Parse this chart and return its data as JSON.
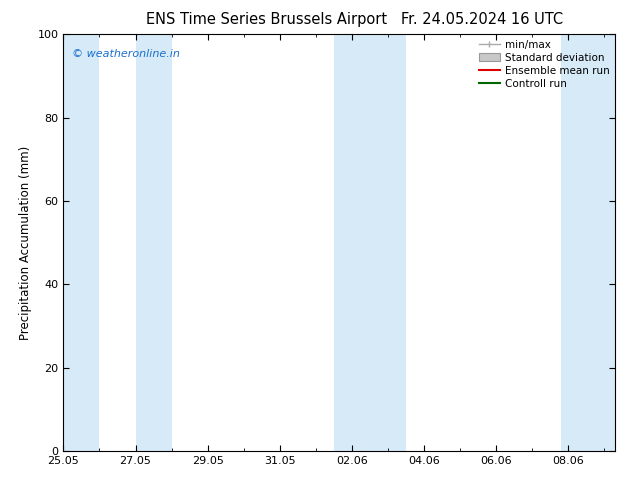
{
  "title_left": "ENS Time Series Brussels Airport",
  "title_right": "Fr. 24.05.2024 16 UTC",
  "ylabel": "Precipitation Accumulation (mm)",
  "watermark": "© weatheronline.in",
  "ylim": [
    0,
    100
  ],
  "yticks": [
    0,
    20,
    40,
    60,
    80,
    100
  ],
  "xtick_labels": [
    "25.05",
    "27.05",
    "29.05",
    "31.05",
    "02.06",
    "04.06",
    "06.06",
    "08.06"
  ],
  "xtick_positions": [
    0,
    2,
    4,
    6,
    8,
    10,
    12,
    14
  ],
  "xlim": [
    0,
    15.3
  ],
  "shaded_bands": [
    [
      0,
      1.0
    ],
    [
      2.0,
      3.0
    ],
    [
      7.5,
      9.5
    ],
    [
      13.8,
      15.3
    ]
  ],
  "shade_color": "#d6eaf8",
  "background_color": "#ffffff",
  "plot_bg_color": "#ffffff",
  "watermark_color": "#1a6fcc",
  "title_fontsize": 10.5,
  "axis_fontsize": 8.5,
  "tick_fontsize": 8,
  "legend_fontsize": 7.5,
  "minmax_color": "#aaaaaa",
  "std_color": "#c8c8c8",
  "ensemble_color": "#dd0000",
  "control_color": "#006600"
}
